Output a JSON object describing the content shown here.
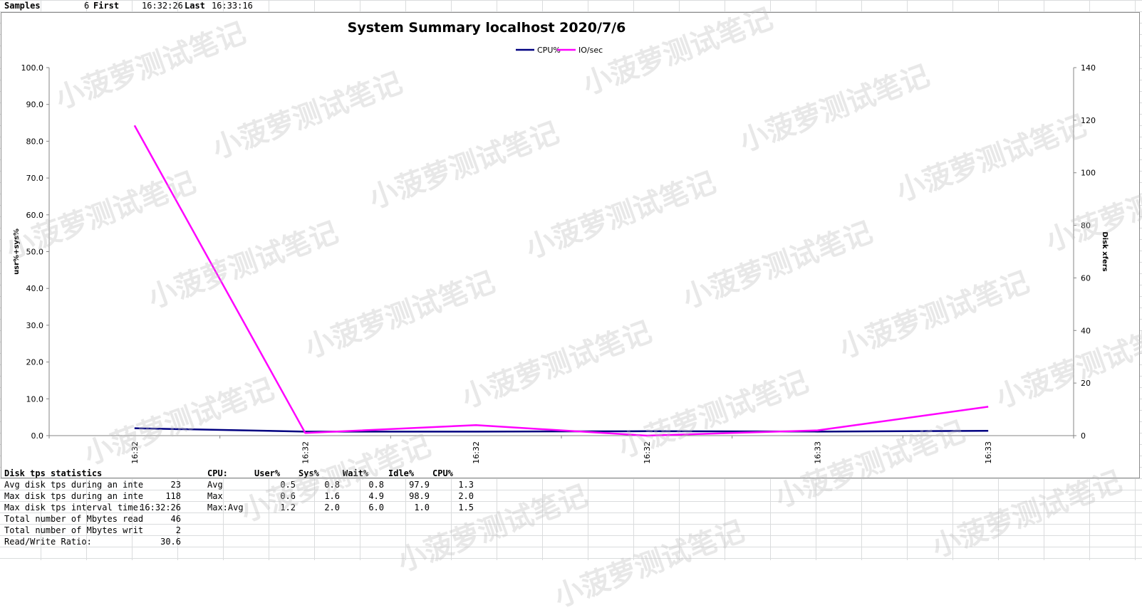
{
  "header": {
    "samples_label": "Samples",
    "samples_value": "6",
    "first_label": "First",
    "first_value": "16:32:26",
    "last_label": "Last",
    "last_value": "16:33:16"
  },
  "chart_data": {
    "type": "line",
    "title": "System Summary localhost  2020/7/6",
    "categories": [
      "16:32",
      "16:32",
      "16:32",
      "16:32",
      "16:33",
      "16:33"
    ],
    "series": [
      {
        "name": "CPU%",
        "axis": "left",
        "color": "#000080",
        "values": [
          2.0,
          1.1,
          1.1,
          1.2,
          1.1,
          1.3
        ]
      },
      {
        "name": "IO/sec",
        "axis": "right",
        "color": "#ff00ff",
        "values": [
          118,
          1,
          4,
          0,
          2,
          11
        ]
      }
    ],
    "ylabel": "usr%+sys%",
    "y2label": "Disk xfers",
    "ylim": [
      0,
      100
    ],
    "y2lim": [
      0,
      140
    ],
    "yticks": [
      "0.0",
      "10.0",
      "20.0",
      "30.0",
      "40.0",
      "50.0",
      "60.0",
      "70.0",
      "80.0",
      "90.0",
      "100.0"
    ],
    "y2ticks": [
      "0",
      "20",
      "40",
      "60",
      "80",
      "100",
      "120",
      "140"
    ],
    "legend_position": "top-center",
    "grid": false
  },
  "disk_stats": {
    "title": "Disk tps statistics",
    "rows": [
      {
        "label": "Avg disk tps during an inte",
        "value": "23"
      },
      {
        "label": "Max disk tps during an inte",
        "value": "118"
      },
      {
        "label": "Max disk tps interval time:",
        "value": "16:32:26"
      },
      {
        "label": "Total number of Mbytes read",
        "value": "46"
      },
      {
        "label": "Total number of Mbytes writ",
        "value": "2"
      },
      {
        "label": "Read/Write Ratio:",
        "value": "30.6"
      }
    ]
  },
  "cpu_stats": {
    "headers": [
      "CPU:",
      "User%",
      "Sys%",
      "Wait%",
      "Idle%",
      "CPU%"
    ],
    "rows": [
      {
        "label": "Avg",
        "values": [
          "0.5",
          "0.8",
          "0.8",
          "97.9",
          "1.3"
        ]
      },
      {
        "label": "Max",
        "values": [
          "0.6",
          "1.6",
          "4.9",
          "98.9",
          "2.0"
        ]
      },
      {
        "label": "Max:Avg",
        "values": [
          "1.2",
          "2.0",
          "6.0",
          "1.0",
          "1.5"
        ]
      }
    ]
  },
  "watermark": "小菠萝测试笔记"
}
